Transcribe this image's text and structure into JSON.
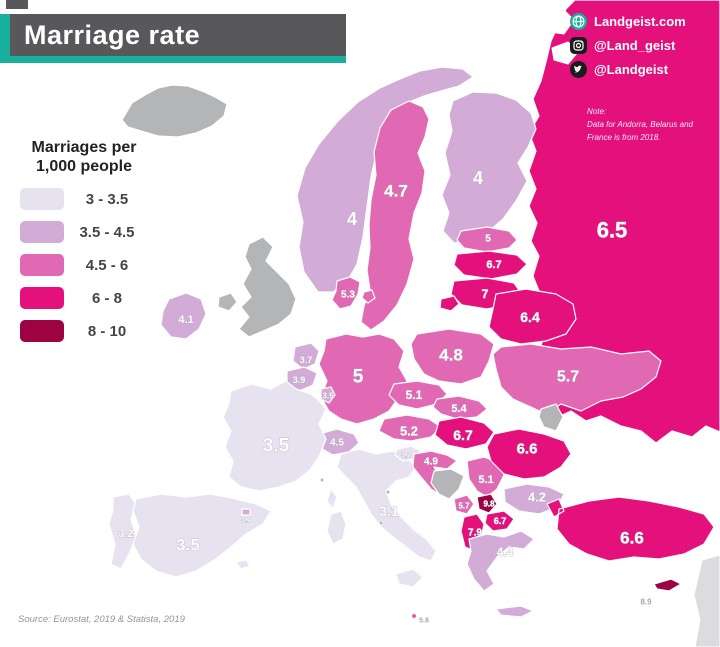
{
  "header": {
    "title": "Marriage rate"
  },
  "branding": {
    "items": [
      {
        "icon": "globe-icon",
        "label": "Landgeist.com"
      },
      {
        "icon": "instagram-icon",
        "label": "@Land_geist"
      },
      {
        "icon": "twitter-icon",
        "label": "@Landgeist"
      }
    ]
  },
  "note": {
    "lines": [
      "Note:",
      "Data for Andorra, Belarus and",
      "France is from 2018."
    ]
  },
  "legend": {
    "title_lines": [
      "Marriages per",
      "1,000 people"
    ],
    "buckets": [
      {
        "label": "3 - 3.5",
        "color": "#e6e2ef"
      },
      {
        "label": "3.5 - 4.5",
        "color": "#d2abd6"
      },
      {
        "label": "4.5 - 6",
        "color": "#e169b3"
      },
      {
        "label": "6 - 8",
        "color": "#e4107c"
      },
      {
        "label": "8 - 10",
        "color": "#9d0342"
      }
    ]
  },
  "map": {
    "no_data_color": "#b4b5b7",
    "sea_color": "#ffffff",
    "label_color": "#ffffff",
    "muted_label_color": "#a7a6ad",
    "countries": [
      {
        "id": "russia",
        "name": "Russia",
        "value": "6.5",
        "bucket": 4
      },
      {
        "id": "iceland",
        "name": "Iceland",
        "value": "",
        "bucket": 0
      },
      {
        "id": "norway",
        "name": "Norway",
        "value": "4",
        "bucket": 2
      },
      {
        "id": "sweden",
        "name": "Sweden",
        "value": "4.7",
        "bucket": 3
      },
      {
        "id": "finland",
        "name": "Finland",
        "value": "4",
        "bucket": 2
      },
      {
        "id": "denmark",
        "name": "Denmark",
        "value": "5.3",
        "bucket": 3
      },
      {
        "id": "estonia",
        "name": "Estonia",
        "value": "5",
        "bucket": 3
      },
      {
        "id": "latvia",
        "name": "Latvia",
        "value": "6.7",
        "bucket": 4
      },
      {
        "id": "lithuania",
        "name": "Lithuania",
        "value": "7",
        "bucket": 4
      },
      {
        "id": "kaliningrad",
        "name": "Russia (Kaliningrad)",
        "value": "",
        "bucket": 4
      },
      {
        "id": "belarus",
        "name": "Belarus",
        "value": "6.4",
        "bucket": 4
      },
      {
        "id": "ukraine",
        "name": "Ukraine",
        "value": "5.7",
        "bucket": 3
      },
      {
        "id": "moldova",
        "name": "Moldova",
        "value": "",
        "bucket": 0
      },
      {
        "id": "poland",
        "name": "Poland",
        "value": "4.8",
        "bucket": 3
      },
      {
        "id": "germany",
        "name": "Germany",
        "value": "5",
        "bucket": 3
      },
      {
        "id": "netherlands",
        "name": "Netherlands",
        "value": "3.7",
        "bucket": 2
      },
      {
        "id": "belgium",
        "name": "Belgium",
        "value": "3.9",
        "bucket": 2
      },
      {
        "id": "luxembourg",
        "name": "Luxembourg",
        "value": "3.5",
        "bucket": 2
      },
      {
        "id": "czechia",
        "name": "Czechia",
        "value": "5.1",
        "bucket": 3
      },
      {
        "id": "slovakia",
        "name": "Slovakia",
        "value": "5.4",
        "bucket": 3
      },
      {
        "id": "austria",
        "name": "Austria",
        "value": "5.2",
        "bucket": 3
      },
      {
        "id": "hungary",
        "name": "Hungary",
        "value": "6.7",
        "bucket": 4
      },
      {
        "id": "switzerland",
        "name": "Switzerland",
        "value": "4.5",
        "bucket": 2
      },
      {
        "id": "france",
        "name": "France",
        "value": "3.5",
        "bucket": 1
      },
      {
        "id": "uk",
        "name": "United Kingdom",
        "value": "",
        "bucket": 0
      },
      {
        "id": "ireland",
        "name": "Ireland",
        "value": "4.1",
        "bucket": 2
      },
      {
        "id": "portugal",
        "name": "Portugal",
        "value": "3.2",
        "bucket": 1
      },
      {
        "id": "spain",
        "name": "Spain",
        "value": "3.5",
        "bucket": 1
      },
      {
        "id": "andorra",
        "name": "Andorra",
        "value": "3.9",
        "bucket": 2
      },
      {
        "id": "italy",
        "name": "Italy",
        "value": "3.1",
        "bucket": 1
      },
      {
        "id": "slovenia",
        "name": "Slovenia",
        "value": "3.2",
        "bucket": 1
      },
      {
        "id": "croatia",
        "name": "Croatia",
        "value": "4.9",
        "bucket": 3
      },
      {
        "id": "bosnia",
        "name": "Bosnia and Herzegovina",
        "value": "",
        "bucket": 0
      },
      {
        "id": "serbia",
        "name": "Serbia",
        "value": "5.1",
        "bucket": 3
      },
      {
        "id": "montenegro",
        "name": "Montenegro",
        "value": "5.7",
        "bucket": 3
      },
      {
        "id": "kosovo",
        "name": "Kosovo",
        "value": "9.8",
        "bucket": 5
      },
      {
        "id": "macedonia",
        "name": "North Macedonia",
        "value": "6.7",
        "bucket": 4
      },
      {
        "id": "albania",
        "name": "Albania",
        "value": "7.9",
        "bucket": 4
      },
      {
        "id": "greece",
        "name": "Greece",
        "value": "4.4",
        "bucket": 2
      },
      {
        "id": "bulgaria",
        "name": "Bulgaria",
        "value": "4.2",
        "bucket": 2
      },
      {
        "id": "romania",
        "name": "Romania",
        "value": "6.6",
        "bucket": 4
      },
      {
        "id": "turkey",
        "name": "Turkey",
        "value": "6.6",
        "bucket": 4
      },
      {
        "id": "cyprus",
        "name": "Cyprus",
        "value": "8.9",
        "bucket": 5
      },
      {
        "id": "malta",
        "name": "Malta",
        "value": "5.8",
        "bucket": 3
      },
      {
        "id": "monaco",
        "name": "Monaco",
        "value": "",
        "bucket": 0
      },
      {
        "id": "san_marino",
        "name": "San Marino",
        "value": "",
        "bucket": 0
      },
      {
        "id": "vatican",
        "name": "Vatican",
        "value": "",
        "bucket": 0
      }
    ]
  },
  "source": "Source: Eurostat, 2019 & Statista, 2019"
}
